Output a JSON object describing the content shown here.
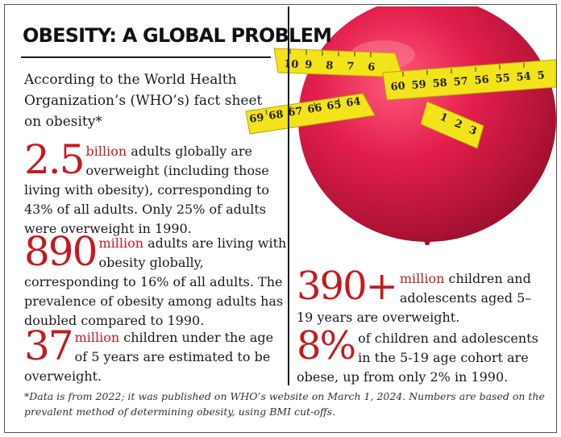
{
  "title": "OBESITY: A GLOBAL PROBLEM",
  "intro": "According to the World Health Organization’s (WHO’s) fact sheet on obesity*",
  "facts": [
    {
      "big": "2.5",
      "unit": "billion",
      "text": " adults globally are overweight (including those living with obesity), corresponding to 43% of all adults. Only 25% of adults were overweight in 1990."
    },
    {
      "big": "890",
      "unit": "million",
      "text": " adults are living with obesity globally, corresponding to 16% of all adults. The prevalence of obesity among adults has doubled compared to 1990."
    },
    {
      "big": "37",
      "unit": "million",
      "text": " children under the age of 5 years are estimated to be overweight."
    },
    {
      "big": "390+",
      "unit": "million",
      "text": " children and adolescents aged 5–19 years are overweight."
    },
    {
      "big": "8%",
      "unit": "",
      "text": " of children and adolescents in the 5-19 age cohort are obese, up from only 2% in 1990."
    }
  ],
  "footnote": "*Data is from 2022; it was published on WHO’s website on March 1, 2024. Numbers are based on the prevalent method of determining obesity, using BMI cut-offs.",
  "tape_numbers_left": [
    "10",
    "9",
    "8",
    "7",
    "6",
    "64",
    "65",
    "66",
    "67",
    "68",
    "69"
  ],
  "tape_numbers_right": [
    "60",
    "59",
    "58",
    "57",
    "56",
    "55",
    "54",
    "5"
  ],
  "tape_numbers_tail": [
    "1",
    "2",
    "3"
  ],
  "colors": {
    "accent": "#c61a1f",
    "balloon": "#e21e4c",
    "tape": "#f2e31b"
  }
}
